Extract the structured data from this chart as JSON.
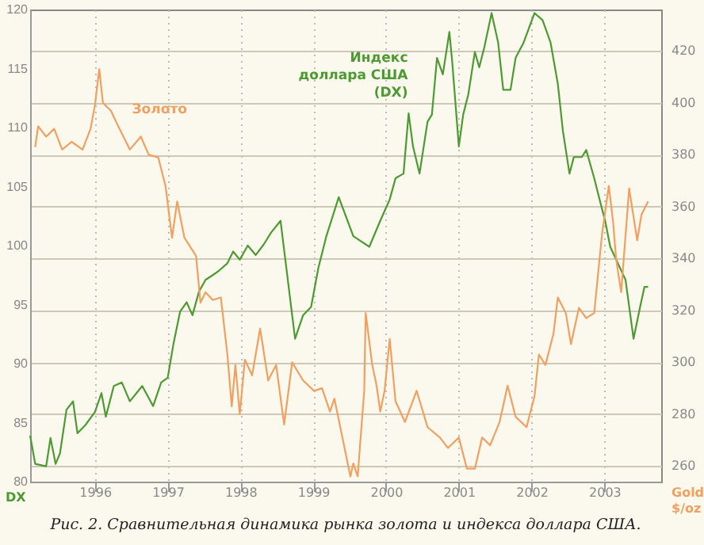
{
  "chart_data": {
    "type": "line",
    "ylabel": "DX",
    "y2label": "Gold $/oz",
    "annotations": [
      "Рис. 2. Сравнительная динамика рынка золота и индекса доллара США."
    ],
    "xlim": [
      1995.11,
      2003.78
    ],
    "xticks": [
      1996,
      1997,
      1998,
      1999,
      2000,
      2001,
      2002,
      2003
    ],
    "ylim": [
      80,
      120
    ],
    "yticks": [
      80,
      85,
      90,
      95,
      100,
      105,
      110,
      115,
      120
    ],
    "y2lim": [
      254,
      436
    ],
    "y2ticks": [
      260,
      280,
      300,
      320,
      340,
      360,
      380,
      400,
      420
    ],
    "grid": true,
    "series": [
      {
        "name": "Индекс доллара США (DX)",
        "color": "#4e9a32",
        "x": [
          1995.11,
          1995.18,
          1995.33,
          1995.39,
          1995.46,
          1995.52,
          1995.61,
          1995.7,
          1995.76,
          1995.87,
          1996.0,
          1996.09,
          1996.15,
          1996.26,
          1996.37,
          1996.48,
          1996.65,
          1996.8,
          1996.91,
          1997.0,
          1997.08,
          1997.17,
          1997.26,
          1997.34,
          1997.43,
          1997.52,
          1997.62,
          1997.71,
          1997.82,
          1997.9,
          1997.99,
          1998.1,
          1998.21,
          1998.32,
          1998.42,
          1998.55,
          1998.75,
          1998.86,
          1998.97,
          1999.07,
          1999.18,
          1999.35,
          1999.55,
          1999.77,
          1999.92,
          2000.05,
          2000.13,
          2000.24,
          2000.31,
          2000.37,
          2000.46,
          2000.57,
          2000.63,
          2000.7,
          2000.78,
          2000.87,
          2000.91,
          2001.0,
          2001.06,
          2001.13,
          2001.22,
          2001.28,
          2001.35,
          2001.45,
          2001.54,
          2001.61,
          2001.71,
          2001.78,
          2001.89,
          2002.04,
          2002.15,
          2002.26,
          2002.36,
          2002.43,
          2002.52,
          2002.58,
          2002.69,
          2002.75,
          2002.86,
          2002.95,
          2003.01,
          2003.08,
          2003.29,
          2003.4,
          2003.49,
          2003.55,
          2003.6
        ],
        "values": [
          83.9,
          81.5,
          81.3,
          83.7,
          81.5,
          82.4,
          86.1,
          86.8,
          84.1,
          84.8,
          85.9,
          87.5,
          85.5,
          88.1,
          88.4,
          86.8,
          88.1,
          86.4,
          88.4,
          88.8,
          91.7,
          94.4,
          95.2,
          94.1,
          96.1,
          97.1,
          97.5,
          97.9,
          98.5,
          99.5,
          98.8,
          100.0,
          99.2,
          100.1,
          101.1,
          102.1,
          92.1,
          94.1,
          94.8,
          98.1,
          100.8,
          104.1,
          100.8,
          99.9,
          102.1,
          103.9,
          105.7,
          106.1,
          111.2,
          108.4,
          106.1,
          110.5,
          111.1,
          115.9,
          114.5,
          118.1,
          115.5,
          108.4,
          111.1,
          112.8,
          116.4,
          115.1,
          116.8,
          119.7,
          117.2,
          113.2,
          113.2,
          115.9,
          117.2,
          119.7,
          119.1,
          117.2,
          113.7,
          109.7,
          106.1,
          107.5,
          107.5,
          108.1,
          105.7,
          103.5,
          102.1,
          99.9,
          97.1,
          92.1,
          94.8,
          96.5,
          96.5
        ]
      },
      {
        "name": "Золото",
        "color": "#f0a060",
        "axis": "y2",
        "x": [
          1995.18,
          1995.22,
          1995.33,
          1995.44,
          1995.55,
          1995.68,
          1995.83,
          1995.94,
          1996.0,
          1996.06,
          1996.11,
          1996.22,
          1996.32,
          1996.48,
          1996.63,
          1996.74,
          1996.87,
          1996.97,
          1997.06,
          1997.13,
          1997.23,
          1997.39,
          1997.45,
          1997.52,
          1997.62,
          1997.73,
          1997.82,
          1997.88,
          1997.93,
          1997.99,
          1998.06,
          1998.16,
          1998.27,
          1998.38,
          1998.49,
          1998.6,
          1998.71,
          1998.86,
          1999.01,
          1999.12,
          1999.23,
          1999.29,
          1999.4,
          1999.51,
          1999.55,
          1999.61,
          1999.7,
          1999.72,
          1999.81,
          1999.87,
          1999.92,
          1999.98,
          2000.05,
          2000.13,
          2000.26,
          2000.42,
          2000.57,
          2000.74,
          2000.85,
          2001.0,
          2001.11,
          2001.22,
          2001.32,
          2001.43,
          2001.56,
          2001.67,
          2001.78,
          2001.93,
          2002.04,
          2002.1,
          2002.19,
          2002.3,
          2002.36,
          2002.47,
          2002.54,
          2002.65,
          2002.75,
          2002.86,
          2002.93,
          2002.97,
          2003.06,
          2003.12,
          2003.16,
          2003.23,
          2003.34,
          2003.45,
          2003.51,
          2003.6
        ],
        "values": [
          383,
          391,
          387,
          390,
          382,
          385,
          382,
          390,
          399,
          413,
          400,
          397,
          391,
          382,
          387,
          380,
          379,
          368,
          348,
          362,
          348,
          341,
          323,
          327,
          324,
          325,
          303,
          283,
          299,
          280,
          301,
          295,
          313,
          293,
          299,
          276,
          300,
          293,
          289,
          290,
          281,
          286,
          271,
          256,
          261,
          256,
          289,
          319,
          299,
          291,
          281,
          289,
          309,
          285,
          277,
          289,
          275,
          271,
          267,
          271,
          259,
          259,
          271,
          268,
          277,
          291,
          279,
          275,
          287,
          303,
          299,
          311,
          325,
          319,
          307,
          321,
          317,
          319,
          339,
          350,
          368,
          354,
          340,
          327,
          367,
          347,
          357,
          362
        ]
      }
    ]
  }
}
